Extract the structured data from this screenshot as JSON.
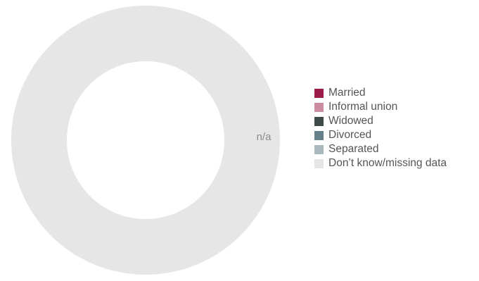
{
  "chart_data": {
    "type": "pie",
    "donut": true,
    "title": "",
    "no_data_label": "n/a",
    "legend_position": "right",
    "series": [
      {
        "name": "Married",
        "value": 0,
        "color": "#9b1b4b"
      },
      {
        "name": "Informal union",
        "value": 0,
        "color": "#cc8ba3"
      },
      {
        "name": "Widowed",
        "value": 0,
        "color": "#3e4a47"
      },
      {
        "name": "Divorced",
        "value": 0,
        "color": "#66808a"
      },
      {
        "name": "Separated",
        "value": 0,
        "color": "#a9b8bd"
      },
      {
        "name": "Don’t know/missing data",
        "value": 100,
        "color": "#e6e6e6"
      }
    ]
  }
}
